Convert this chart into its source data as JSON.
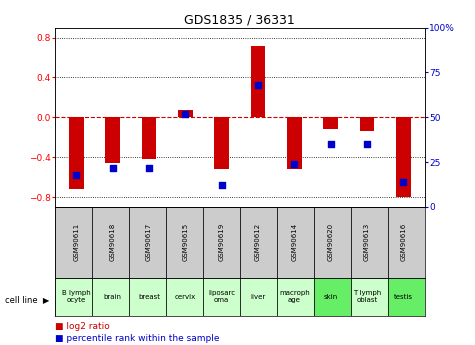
{
  "title": "GDS1835 / 36331",
  "gsm_labels": [
    "GSM90611",
    "GSM90618",
    "GSM90617",
    "GSM90615",
    "GSM90619",
    "GSM90612",
    "GSM90614",
    "GSM90620",
    "GSM90613",
    "GSM90616"
  ],
  "cell_lines": [
    "B lymph\nocyte",
    "brain",
    "breast",
    "cervix",
    "liposarc\noma",
    "liver",
    "macroph\nage",
    "skin",
    "T lymph\noblast",
    "testis"
  ],
  "log2_ratio": [
    -0.72,
    -0.46,
    -0.42,
    0.07,
    -0.52,
    0.72,
    -0.52,
    -0.12,
    -0.14,
    -0.8
  ],
  "percentile_rank": [
    18,
    22,
    22,
    52,
    12,
    68,
    24,
    35,
    35,
    14
  ],
  "ylim": [
    -0.9,
    0.9
  ],
  "yticks_left": [
    -0.8,
    -0.4,
    0.0,
    0.4,
    0.8
  ],
  "yticks_right": [
    0,
    25,
    50,
    75,
    100
  ],
  "bar_color": "#cc0000",
  "dot_color": "#0000cc",
  "cell_line_bg_light": "#ccffcc",
  "cell_line_bg_darker": "#66ee66",
  "gsm_bg": "#cccccc",
  "right_axis_color": "#0000cc",
  "cell_colors_idx": [
    0,
    0,
    0,
    0,
    0,
    0,
    0,
    1,
    0,
    1
  ]
}
